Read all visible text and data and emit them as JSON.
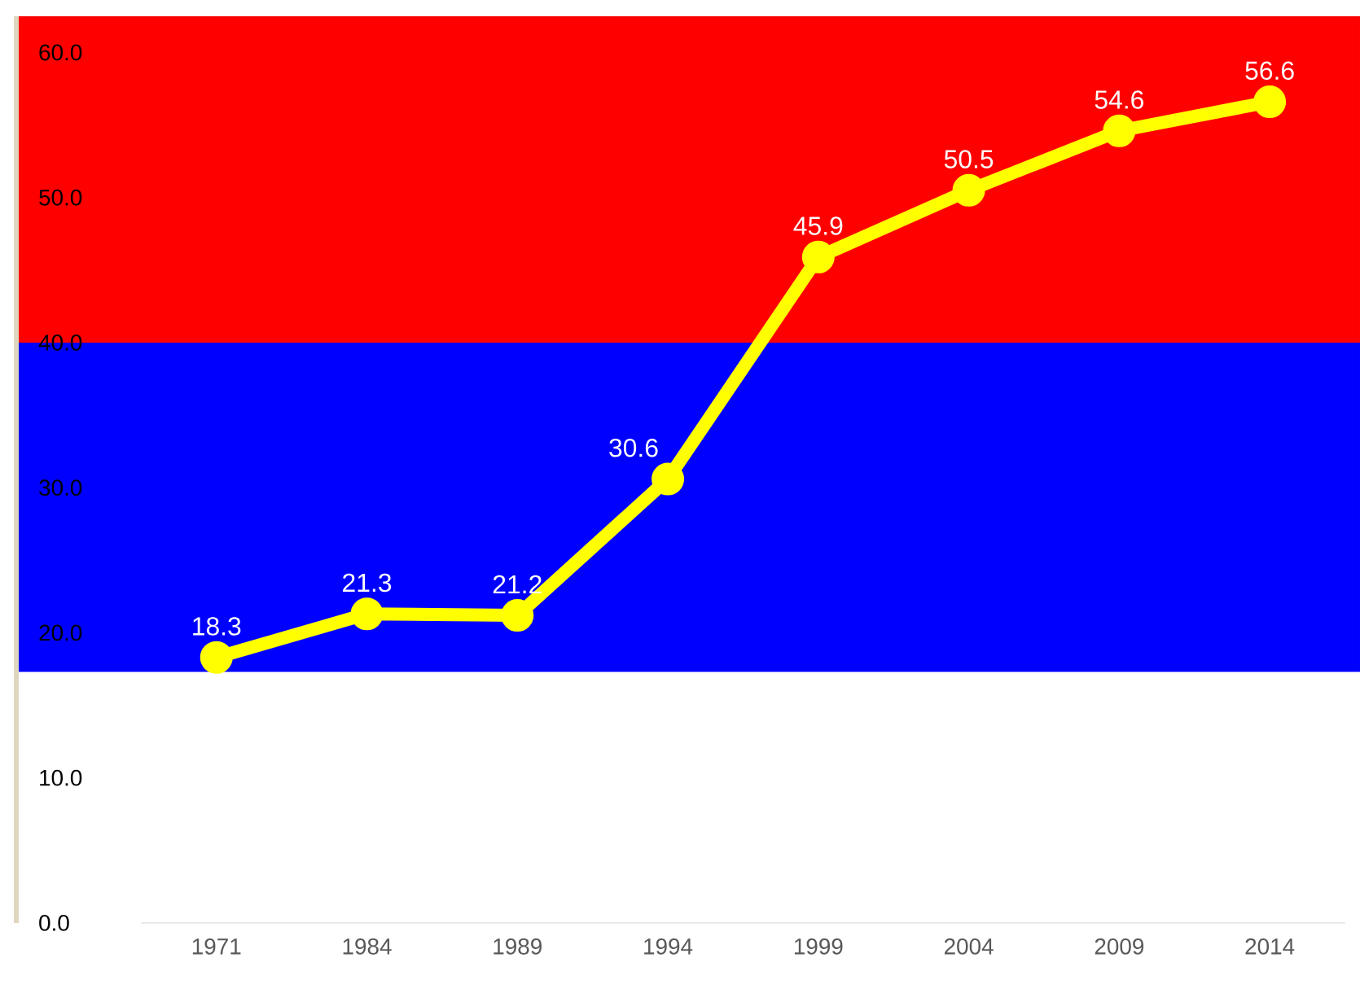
{
  "chart_data": {
    "type": "line",
    "categories": [
      "1971",
      "1984",
      "1989",
      "1994",
      "1999",
      "2004",
      "2009",
      "2014"
    ],
    "values": [
      18.3,
      21.3,
      21.2,
      30.6,
      45.9,
      50.5,
      54.6,
      56.6
    ],
    "color": "#ffff00",
    "marker": "circle",
    "line_style": "solid",
    "data_labels": true,
    "ylim": [
      0,
      62.5
    ],
    "yticks": [
      {
        "value": 0,
        "label": "0.0"
      },
      {
        "value": 10,
        "label": "10.0"
      },
      {
        "value": 20,
        "label": "20.0"
      },
      {
        "value": 30,
        "label": "30.0"
      },
      {
        "value": 40,
        "label": "40.0"
      },
      {
        "value": 50,
        "label": "50.0"
      },
      {
        "value": 60,
        "label": "60.0"
      }
    ],
    "bands": [
      {
        "axis": "y",
        "from": 40,
        "to": 62.5,
        "color": "#ff0000"
      },
      {
        "axis": "y",
        "from": 17.3,
        "to": 40,
        "color": "#0000ff"
      }
    ]
  }
}
